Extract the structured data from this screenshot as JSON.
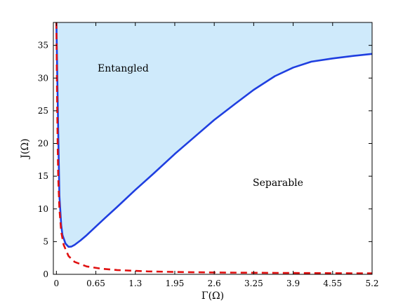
{
  "chart_data": {
    "type": "line",
    "title": "",
    "xlabel": "Γ(Ω)",
    "ylabel": "J(Ω)",
    "xlim": [
      -0.05,
      5.2
    ],
    "ylim": [
      0,
      38.5
    ],
    "xticks": [
      0,
      0.65,
      1.3,
      1.95,
      2.6,
      3.25,
      3.9,
      4.55,
      5.2
    ],
    "xtick_labels": [
      "0",
      "0.65",
      "1.3",
      "1.95",
      "2.6",
      "3.25",
      "3.9",
      "4.55",
      "5.2"
    ],
    "yticks": [
      0,
      5,
      10,
      15,
      20,
      25,
      30,
      35
    ],
    "ytick_labels": [
      "0",
      "5",
      "10",
      "15",
      "20",
      "25",
      "30",
      "35"
    ],
    "grid": false,
    "colors": {
      "boundary": "#1f3fe0",
      "dashed": "#e01010",
      "entangled_fill": "#cfeafb"
    },
    "series": [
      {
        "style": "solid",
        "x": [
          0.0,
          0.03,
          0.05,
          0.08,
          0.1,
          0.15,
          0.2,
          0.25,
          0.3,
          0.4,
          0.5,
          0.65,
          0.8,
          1.0,
          1.3,
          1.6,
          1.95,
          2.3,
          2.6,
          2.95,
          3.25,
          3.6,
          3.9,
          4.2,
          4.55,
          4.9,
          5.2
        ],
        "y": [
          38.5,
          22.0,
          12.0,
          7.5,
          6.0,
          4.7,
          4.2,
          4.25,
          4.5,
          5.2,
          6.0,
          7.3,
          8.6,
          10.3,
          12.9,
          15.4,
          18.4,
          21.2,
          23.6,
          26.1,
          28.2,
          30.3,
          31.6,
          32.5,
          33.0,
          33.4,
          33.7
        ]
      },
      {
        "style": "dashed",
        "x": [
          0.0,
          0.01,
          0.02,
          0.03,
          0.05,
          0.08,
          0.12,
          0.2,
          0.3,
          0.5,
          0.75,
          1.0,
          1.5,
          2.0,
          2.6,
          3.25,
          3.9,
          4.55,
          5.2
        ],
        "y": [
          38.5,
          28.0,
          20.0,
          15.0,
          10.0,
          6.5,
          4.5,
          2.8,
          1.9,
          1.2,
          0.85,
          0.65,
          0.45,
          0.35,
          0.28,
          0.24,
          0.2,
          0.17,
          0.15
        ]
      }
    ],
    "annotations": [
      {
        "text": "Entangled",
        "x": 1.1,
        "y": 31.0
      },
      {
        "text": "Separable",
        "x": 3.65,
        "y": 13.5
      }
    ]
  }
}
